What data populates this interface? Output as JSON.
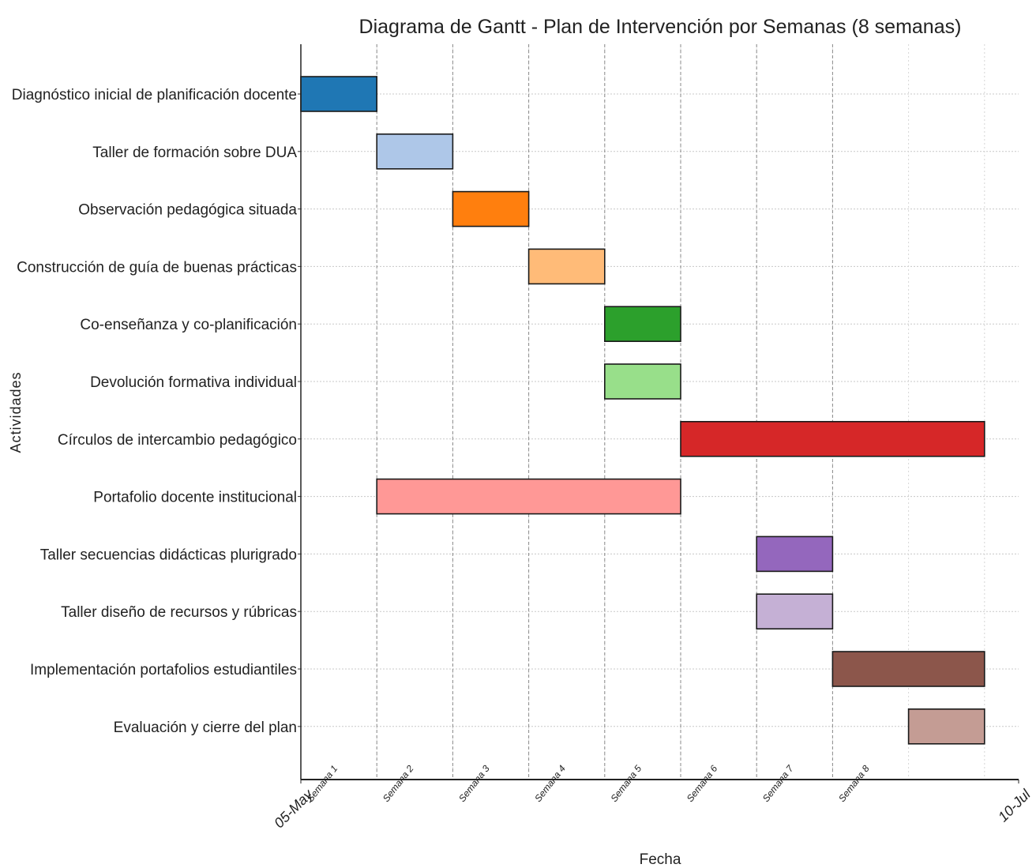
{
  "chart_data": {
    "type": "gantt",
    "title": "Diagrama de Gantt - Plan de Intervención por Semanas (8 semanas)",
    "xlabel": "Fecha",
    "ylabel": "Actividades",
    "x_tick_labels": [
      "05-May",
      "10-Jul"
    ],
    "x_range_weeks": [
      0,
      9.5
    ],
    "grid": true,
    "week_markers": [
      {
        "label": "Semana 1",
        "week": 0
      },
      {
        "label": "Semana 2",
        "week": 1
      },
      {
        "label": "Semana 3",
        "week": 2
      },
      {
        "label": "Semana 4",
        "week": 3
      },
      {
        "label": "Semana 5",
        "week": 4
      },
      {
        "label": "Semana 6",
        "week": 5
      },
      {
        "label": "Semana 7",
        "week": 6
      },
      {
        "label": "Semana 8",
        "week": 7
      }
    ],
    "tasks": [
      {
        "name": "Diagnóstico inicial de planificación docente",
        "start_week": 0,
        "end_week": 1,
        "color": "#1f77b4"
      },
      {
        "name": "Taller de formación sobre DUA",
        "start_week": 1,
        "end_week": 2,
        "color": "#aec7e8"
      },
      {
        "name": "Observación pedagógica situada",
        "start_week": 2,
        "end_week": 3,
        "color": "#ff7f0e"
      },
      {
        "name": "Construcción de guía de buenas prácticas",
        "start_week": 3,
        "end_week": 4,
        "color": "#ffbb78"
      },
      {
        "name": "Co-enseñanza y co-planificación",
        "start_week": 4,
        "end_week": 5,
        "color": "#2ca02c"
      },
      {
        "name": "Devolución formativa individual",
        "start_week": 4,
        "end_week": 5,
        "color": "#98df8a"
      },
      {
        "name": "Círculos de intercambio pedagógico",
        "start_week": 5,
        "end_week": 9,
        "color": "#d62728"
      },
      {
        "name": "Portafolio docente institucional",
        "start_week": 1,
        "end_week": 5,
        "color": "#ff9896"
      },
      {
        "name": "Taller secuencias didácticas plurigrado",
        "start_week": 6,
        "end_week": 7,
        "color": "#9467bd"
      },
      {
        "name": "Taller diseño de recursos y rúbricas",
        "start_week": 6,
        "end_week": 7,
        "color": "#c5b0d5"
      },
      {
        "name": "Implementación portafolios estudiantiles",
        "start_week": 7,
        "end_week": 9,
        "color": "#8c564b"
      },
      {
        "name": "Evaluación y cierre del plan",
        "start_week": 8,
        "end_week": 9,
        "color": "#c49c94"
      }
    ]
  }
}
